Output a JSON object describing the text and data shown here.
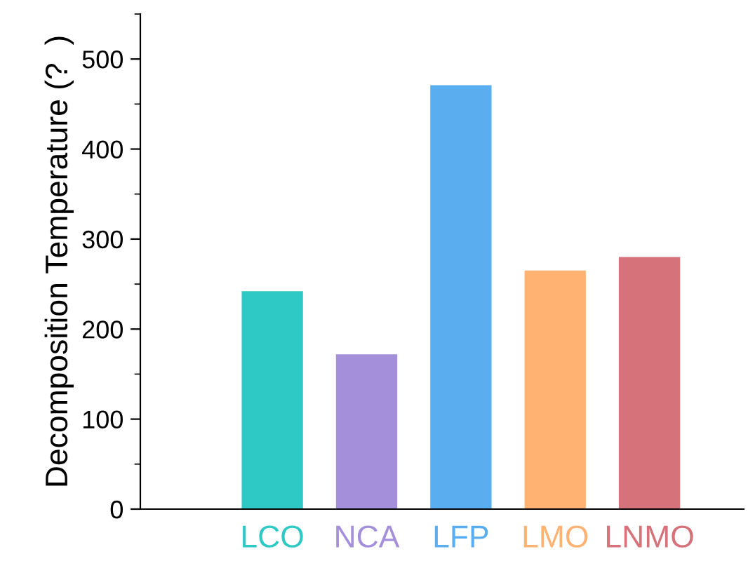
{
  "chart_data": {
    "type": "bar",
    "ylabel": "Decomposition Temperature (?  )",
    "categories": [
      "LCO",
      "NCA",
      "LFP",
      "LMO",
      "LNMO"
    ],
    "values": [
      242,
      172,
      471,
      265,
      280
    ],
    "colors": [
      "#2ec9c4",
      "#a48fdb",
      "#5aaef0",
      "#ffb272",
      "#d6737a"
    ],
    "ylim": [
      0,
      550
    ],
    "yticks": [
      0,
      100,
      200,
      300,
      400,
      500
    ],
    "grid": false,
    "legend": false
  }
}
